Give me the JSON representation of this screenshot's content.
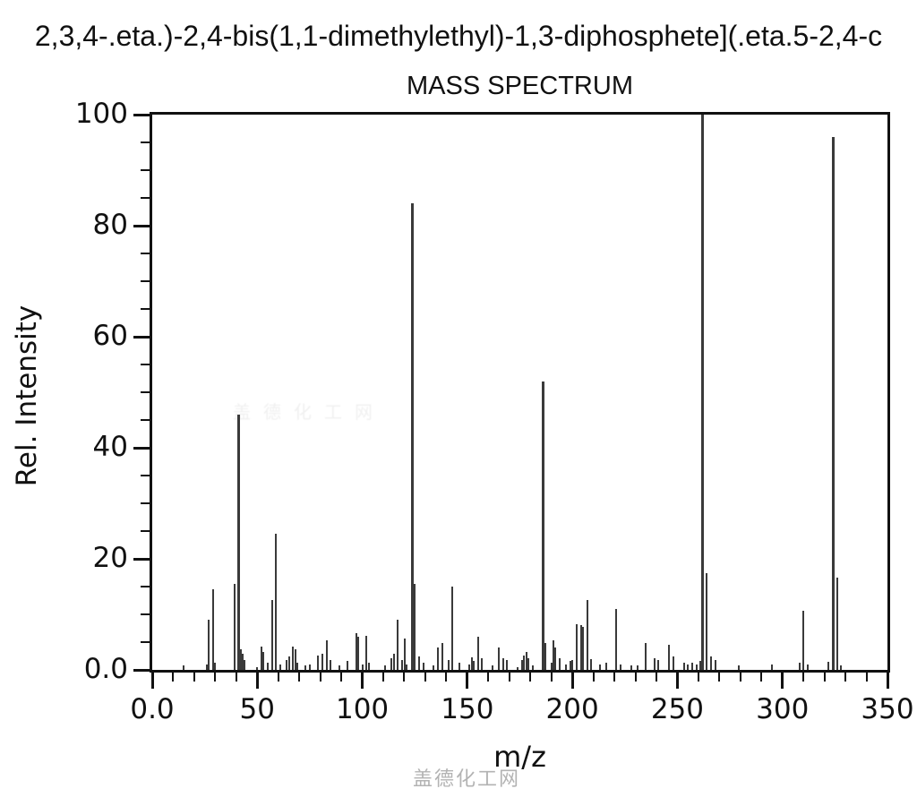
{
  "header": {
    "compound_line": "2,3,4-.eta.)-2,4-bis(1,1-dimethylethyl)-1,3-diphosphete](.eta.5-2,4-c",
    "chart_title": "MASS SPECTRUM"
  },
  "axes": {
    "x": {
      "label": "m/z",
      "min": 0,
      "max": 350,
      "major_values": [
        0,
        50,
        100,
        150,
        200,
        250,
        300,
        350
      ],
      "major_labels": [
        "0.0",
        "50",
        "100",
        "150",
        "200",
        "250",
        "300",
        "350"
      ],
      "minor_step": 10
    },
    "y": {
      "label": "Rel. Intensity",
      "min": 0,
      "max": 100,
      "major_values": [
        0,
        20,
        40,
        60,
        80,
        100
      ],
      "major_labels": [
        "0.0",
        "20",
        "40",
        "60",
        "80",
        "100"
      ],
      "minor_step": 5
    }
  },
  "watermark": {
    "text": "盖德化工网",
    "color": "#b3b3b3"
  },
  "chart_data": {
    "type": "bar",
    "title": "MASS SPECTRUM",
    "xlabel": "m/z",
    "ylabel": "Rel. Intensity",
    "xlim": [
      0,
      350
    ],
    "ylim": [
      0,
      100
    ],
    "grid": false,
    "legend": false,
    "bar_color": "#3a3a3a",
    "peaks": [
      [
        15,
        0.8
      ],
      [
        26,
        1.0
      ],
      [
        27,
        9.0
      ],
      [
        29,
        14.5
      ],
      [
        30,
        1.3
      ],
      [
        39,
        15.5
      ],
      [
        41,
        46.0
      ],
      [
        42,
        3.7
      ],
      [
        43,
        2.9
      ],
      [
        44,
        1.8
      ],
      [
        50,
        0.5
      ],
      [
        52,
        4.2
      ],
      [
        53,
        3.2
      ],
      [
        55,
        1.3
      ],
      [
        57,
        12.6
      ],
      [
        59,
        24.5
      ],
      [
        61,
        1.0
      ],
      [
        64,
        1.8
      ],
      [
        65,
        2.4
      ],
      [
        67,
        4.2
      ],
      [
        68,
        3.7
      ],
      [
        69,
        1.3
      ],
      [
        73,
        0.8
      ],
      [
        75,
        1.0
      ],
      [
        79,
        2.6
      ],
      [
        81,
        2.9
      ],
      [
        83,
        5.3
      ],
      [
        85,
        1.8
      ],
      [
        89,
        0.8
      ],
      [
        93,
        1.6
      ],
      [
        97,
        6.7
      ],
      [
        98,
        5.9
      ],
      [
        100,
        1.0
      ],
      [
        102,
        6.1
      ],
      [
        103,
        1.3
      ],
      [
        111,
        0.8
      ],
      [
        114,
        2.1
      ],
      [
        115,
        2.9
      ],
      [
        117,
        9.0
      ],
      [
        119,
        1.8
      ],
      [
        120,
        5.6
      ],
      [
        121,
        1.0
      ],
      [
        124,
        84.0
      ],
      [
        125,
        15.5
      ],
      [
        127,
        2.4
      ],
      [
        129,
        1.3
      ],
      [
        134,
        0.8
      ],
      [
        136,
        4.0
      ],
      [
        138,
        4.8
      ],
      [
        141,
        1.8
      ],
      [
        143,
        15.0
      ],
      [
        146,
        1.3
      ],
      [
        151,
        1.0
      ],
      [
        152,
        2.2
      ],
      [
        153,
        1.6
      ],
      [
        155,
        5.9
      ],
      [
        157,
        2.1
      ],
      [
        162,
        0.8
      ],
      [
        165,
        4.0
      ],
      [
        167,
        2.1
      ],
      [
        169,
        1.8
      ],
      [
        174,
        0.5
      ],
      [
        176,
        1.8
      ],
      [
        177,
        2.6
      ],
      [
        178,
        3.2
      ],
      [
        179,
        2.1
      ],
      [
        181,
        0.8
      ],
      [
        186,
        52.0
      ],
      [
        187,
        4.9
      ],
      [
        190,
        1.3
      ],
      [
        191,
        5.3
      ],
      [
        192,
        4.0
      ],
      [
        194,
        2.1
      ],
      [
        197,
        0.9
      ],
      [
        199,
        1.6
      ],
      [
        200,
        1.8
      ],
      [
        202,
        8.3
      ],
      [
        204,
        8.1
      ],
      [
        205,
        7.7
      ],
      [
        207,
        12.6
      ],
      [
        209,
        2.0
      ],
      [
        213,
        1.0
      ],
      [
        216,
        1.3
      ],
      [
        221,
        11.0
      ],
      [
        223,
        0.9
      ],
      [
        228,
        0.8
      ],
      [
        231,
        0.8
      ],
      [
        235,
        4.8
      ],
      [
        239,
        2.1
      ],
      [
        241,
        1.8
      ],
      [
        246,
        4.5
      ],
      [
        248,
        2.4
      ],
      [
        253,
        1.3
      ],
      [
        255,
        1.0
      ],
      [
        257,
        1.3
      ],
      [
        259,
        1.0
      ],
      [
        261,
        1.6
      ],
      [
        262,
        100.0
      ],
      [
        264,
        17.5
      ],
      [
        266,
        2.4
      ],
      [
        268,
        1.8
      ],
      [
        279,
        0.8
      ],
      [
        295,
        1.0
      ],
      [
        308,
        1.3
      ],
      [
        310,
        10.7
      ],
      [
        312,
        1.0
      ],
      [
        322,
        1.5
      ],
      [
        324,
        96.0
      ],
      [
        326,
        16.6
      ],
      [
        328,
        0.8
      ]
    ]
  }
}
